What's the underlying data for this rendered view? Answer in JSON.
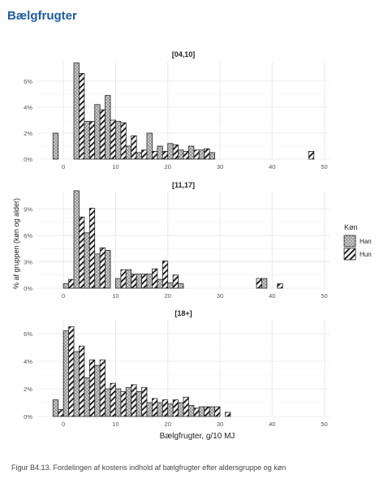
{
  "page": {
    "title": "Bælgfrugter",
    "caption": "Figur B4.13. Fordelingen af kostens indhold af bælgfrugter efter aldersgruppe og køn"
  },
  "chart_data": {
    "type": "bar",
    "title": "",
    "xlabel": "Bælgfrugter, g/10 MJ",
    "ylabel": "% af gruppen (køn og alder)",
    "xlim": [
      -5,
      51
    ],
    "x_ticks": [
      "0",
      "10",
      "20",
      "30",
      "40",
      "50"
    ],
    "x_tick_values": [
      0,
      10,
      20,
      30,
      40,
      50
    ],
    "bin_width": 2,
    "legend": {
      "title": "Køn",
      "position": "right",
      "entries": [
        {
          "name": "Han",
          "pattern": "dots",
          "color": "#c8c8c8"
        },
        {
          "name": "Hun",
          "pattern": "stripes",
          "color": "#ffffff"
        }
      ]
    },
    "grid": true,
    "panels": [
      {
        "label": "[04,10]",
        "ylim": [
          0,
          7.5
        ],
        "y_ticks": [
          "0%",
          "2%",
          "4%",
          "6%"
        ],
        "y_tick_values": [
          0,
          2,
          4,
          6
        ],
        "bins": [
          -2,
          2,
          4,
          6,
          8,
          10,
          12,
          14,
          16,
          18,
          20,
          22,
          24,
          26,
          28,
          30,
          32,
          34,
          36,
          38,
          40,
          42,
          44,
          46
        ],
        "series": [
          {
            "name": "Han",
            "values": [
              2.0,
              7.4,
              2.9,
              4.2,
              4.9,
              2.9,
              1.0,
              0.5,
              2.0,
              1.0,
              1.2,
              0.7,
              1.0,
              0.7,
              0.5,
              0.0,
              0.0,
              0.0,
              0.0,
              0.0,
              0.0,
              0.0,
              0.0,
              0.0
            ]
          },
          {
            "name": "Hun",
            "values": [
              0.0,
              6.6,
              2.9,
              3.8,
              3.0,
              2.8,
              1.8,
              0.7,
              0.6,
              0.6,
              1.1,
              0.6,
              0.7,
              0.8,
              0.0,
              0.0,
              0.0,
              0.0,
              0.0,
              0.0,
              0.0,
              0.0,
              0.0,
              0.6
            ]
          }
        ]
      },
      {
        "label": "[11,17]",
        "ylim": [
          0,
          11
        ],
        "y_ticks": [
          "0%",
          "3%",
          "6%",
          "9%"
        ],
        "y_tick_values": [
          0,
          3,
          6,
          9
        ],
        "bins": [
          0,
          2,
          4,
          6,
          8,
          10,
          12,
          14,
          16,
          18,
          20,
          22,
          24,
          26,
          28,
          30,
          32,
          34,
          36,
          38,
          40,
          42
        ],
        "series": [
          {
            "name": "Han",
            "values": [
              0.5,
              11.1,
              6.3,
              3.9,
              4.3,
              1.1,
              2.1,
              1.6,
              1.6,
              1.0,
              0.6,
              0.5,
              0.0,
              0.0,
              0.0,
              0.0,
              0.0,
              0.0,
              0.0,
              1.1,
              0.0,
              0.0
            ]
          },
          {
            "name": "Hun",
            "values": [
              1.0,
              8.1,
              9.1,
              4.6,
              0.0,
              2.1,
              1.6,
              1.6,
              2.2,
              3.1,
              1.5,
              0.0,
              0.0,
              0.0,
              0.0,
              0.0,
              0.0,
              0.0,
              1.1,
              0.0,
              0.5,
              0.0
            ]
          }
        ]
      },
      {
        "label": "[18+]",
        "ylim": [
          0,
          7
        ],
        "y_ticks": [
          "0%",
          "2%",
          "4%",
          "6%"
        ],
        "y_tick_values": [
          0,
          2,
          4,
          6
        ],
        "bins": [
          -2,
          0,
          2,
          4,
          6,
          8,
          10,
          12,
          14,
          16,
          18,
          20,
          22,
          24,
          26,
          28,
          30,
          32,
          34,
          36,
          38,
          40,
          42,
          44,
          46,
          48
        ],
        "series": [
          {
            "name": "Han",
            "values": [
              1.2,
              6.2,
              4.7,
              2.8,
              3.7,
              2.0,
              2.0,
              2.1,
              1.8,
              1.0,
              1.0,
              0.9,
              1.0,
              0.8,
              0.7,
              0.7,
              0.0,
              0.0,
              0.0,
              0.0,
              0.0,
              0.0,
              0.0,
              0.0,
              0.0,
              0.0
            ]
          },
          {
            "name": "Hun",
            "values": [
              0.5,
              6.5,
              5.1,
              4.1,
              4.1,
              2.4,
              1.8,
              2.3,
              2.1,
              1.3,
              1.2,
              1.2,
              1.4,
              0.6,
              0.7,
              0.7,
              0.3,
              0.0,
              0.0,
              0.0,
              0.0,
              0.0,
              0.0,
              0.0,
              0.0,
              0.0
            ]
          }
        ]
      }
    ]
  }
}
